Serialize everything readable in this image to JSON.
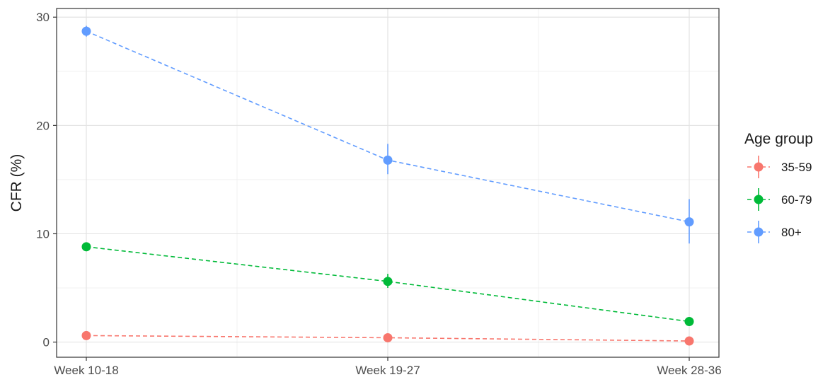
{
  "chart_data": {
    "type": "line",
    "categories": [
      "Week 10-18",
      "Week 19-27",
      "Week 28-36"
    ],
    "ylabel": "CFR (%)",
    "xlabel": "",
    "ylim": [
      -1.4,
      30.8
    ],
    "yticks": [
      0,
      10,
      20,
      30
    ],
    "grid": true,
    "line_style": "dashed",
    "error_bars": true,
    "legend": {
      "title": "Age group",
      "position": "right"
    },
    "series": [
      {
        "name": "35-59",
        "color": "#F8766D",
        "values": [
          0.6,
          0.4,
          0.1
        ],
        "lower": [
          0.4,
          0.25,
          0.05
        ],
        "upper": [
          0.8,
          0.55,
          0.2
        ]
      },
      {
        "name": "60-79",
        "color": "#00BA38",
        "values": [
          8.8,
          5.6,
          1.9
        ],
        "lower": [
          8.5,
          5.0,
          1.6
        ],
        "upper": [
          9.1,
          6.3,
          2.2
        ]
      },
      {
        "name": "80+",
        "color": "#619CFF",
        "values": [
          28.7,
          16.8,
          11.1
        ],
        "lower": [
          28.2,
          15.5,
          9.1
        ],
        "upper": [
          29.2,
          18.3,
          13.2
        ]
      }
    ]
  }
}
